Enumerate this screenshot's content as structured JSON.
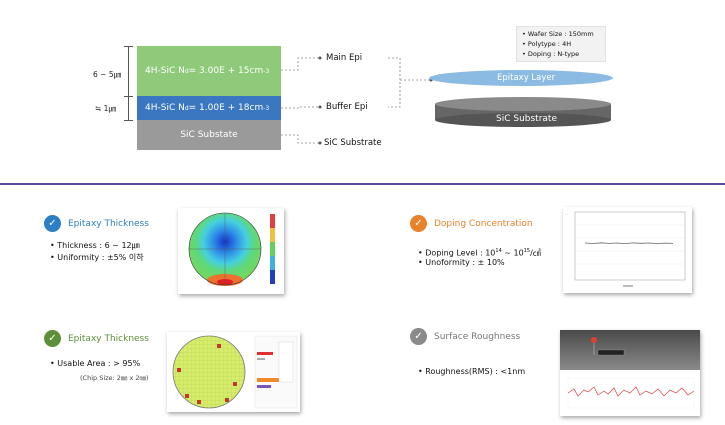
{
  "stack": {
    "main": {
      "text": "4H-SiC  N",
      "sub": "d",
      "val": " = 3.00E + 15cm",
      "sup": "-3"
    },
    "buffer": {
      "text": "4H-SiC  N",
      "sub": "d",
      "val": " = 1.00E + 18cm",
      "sup": "-3"
    },
    "substrate": "SiC Substate",
    "dim_main": "6 ~ 5㎛",
    "dim_buffer": "≒ 1㎛"
  },
  "labels": {
    "main": "Main Epi",
    "buffer": "Buffer Epi",
    "substrate": "SiC Substrate"
  },
  "specs": [
    "Wafer Size : 150mm",
    "Polytype : 4H",
    "Doping : N-type"
  ],
  "disk": {
    "epi": "Epitaxy Layer",
    "sub": "SiC Substrate"
  },
  "features": {
    "f1": {
      "title": "Epitaxy Thickness",
      "b1": "Thickness : 6 ~ 12㎛",
      "b2": "Uniformity : ±5% 이하"
    },
    "f2": {
      "title": "Doping Concentration",
      "b1a": "Doping Level : 10",
      "b1s1": "14",
      "b1b": " ~ 10",
      "b1s2": "15",
      "b1c": "/㎤",
      "b2": "Unoformity : ± 10%"
    },
    "f3": {
      "title": "Epitaxy Thickness",
      "b1": "Usable Area : > 95%",
      "note": "(Chip Size: 2㎜ x 2㎜)"
    },
    "f4": {
      "title": "Surface Roughness",
      "b1": "Roughness(RMS) : <1nm"
    }
  },
  "colors": {
    "main": "#8fc97a",
    "buffer": "#3a77c0",
    "substrate": "#9a9a9a",
    "blue_check": "#2c7fc4",
    "orange_check": "#e8832b",
    "green_check": "#5d8f3a",
    "gray_check": "#8a8a8a",
    "divider": "#5a4f9a"
  }
}
